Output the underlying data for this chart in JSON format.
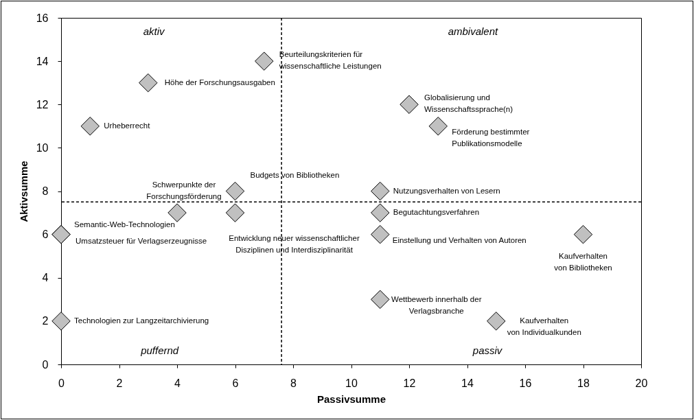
{
  "chart_data": {
    "type": "scatter",
    "xlabel": "Passivsumme",
    "ylabel": "Aktivsumme",
    "xlim": [
      0,
      20
    ],
    "xticks": [
      0,
      2,
      4,
      6,
      8,
      10,
      12,
      14,
      16,
      18,
      20
    ],
    "ylim": [
      0,
      16
    ],
    "yticks": [
      0,
      2,
      4,
      6,
      8,
      10,
      12,
      14,
      16
    ],
    "grid": false,
    "marker": "diamond",
    "x": [
      1,
      3,
      7,
      4,
      6,
      6,
      0,
      0,
      0,
      12,
      13,
      11,
      11,
      11,
      11,
      15,
      18
    ],
    "series": [
      {
        "color": "#c0c0c0",
        "values": [
          11,
          13,
          14,
          7,
          8,
          7,
          6,
          6,
          2,
          12,
          11,
          8,
          7,
          6,
          3,
          2,
          6
        ],
        "value_labels": [
          "Urheberrecht",
          "Höhe der Forschungsausgaben",
          "Beurteilungskriterien für\nwissenschaftliche Leistungen",
          "Schwerpunkte der\nForschungsförderung",
          "Budgets von Bibliotheken",
          "Entwicklung neuer wissenschaftlicher\nDisziplinen und Interdisziplinarität",
          "Semantic-Web-Technologien",
          "Umsatzsteuer für Verlagserzeugnisse",
          "Technologien zur Langzeitarchivierung",
          "Globalisierung und\nWissenschaftssprache(n)",
          "Förderung bestimmter\nPublikationsmodelle",
          "Nutzungsverhalten von Lesern",
          "Begutachtungsverfahren",
          "Einstellung und Verhalten von Autoren",
          "Wettbewerb innerhalb der\nVerlagsbranche",
          "Kaufverhalten\nvon Individualkunden",
          "Kaufverhalten\nvon Bibliotheken"
        ]
      }
    ],
    "ref_lines": [
      {
        "axis": "x",
        "value": 7.6,
        "color": "#000000",
        "line_style": "dashed"
      },
      {
        "axis": "y",
        "value": 7.5,
        "color": "#000000",
        "line_style": "dashed"
      }
    ],
    "annotations": [
      "aktiv",
      "ambivalent",
      "puffernd",
      "passiv"
    ]
  }
}
